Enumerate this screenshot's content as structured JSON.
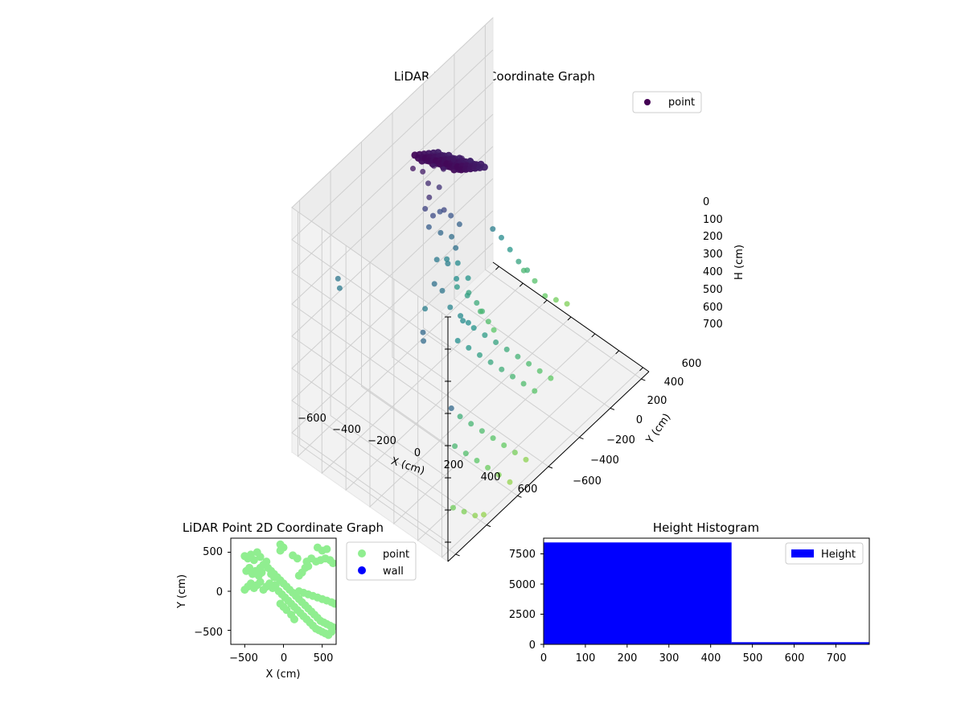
{
  "figure": {
    "panel3d": {
      "title": "LiDAR Point 3D Coordinate Graph",
      "xlabel": "X (cm)",
      "ylabel": "Y (cm)",
      "zlabel": "H (cm)",
      "xticks": [
        "−600",
        "−400",
        "−200",
        "0",
        "200",
        "400",
        "600"
      ],
      "yticks": [
        "−600",
        "−400",
        "−200",
        "0",
        "200",
        "400",
        "600"
      ],
      "zticks": [
        "0",
        "100",
        "200",
        "300",
        "400",
        "500",
        "600",
        "700"
      ],
      "legend": "point"
    },
    "panel2d": {
      "title": "LiDAR Point 2D Coordinate Graph",
      "xlabel": "X (cm)",
      "ylabel": "Y (cm)",
      "xticks": [
        "−500",
        "0",
        "500"
      ],
      "yticks": [
        "500",
        "0",
        "−500"
      ],
      "legend": [
        "point",
        "wall"
      ]
    },
    "histogram": {
      "title": "Height Histogram",
      "xticks": [
        "0",
        "100",
        "200",
        "300",
        "400",
        "500",
        "600",
        "700"
      ],
      "yticks": [
        "0",
        "2500",
        "5000",
        "7500"
      ],
      "legend": "Height"
    }
  },
  "chart_data": [
    {
      "type": "scatter",
      "title": "LiDAR Point 3D Coordinate Graph",
      "xlabel": "X (cm)",
      "ylabel": "Y (cm)",
      "zlabel": "H (cm)",
      "xlim": [
        -650,
        650
      ],
      "ylim": [
        -650,
        650
      ],
      "zlim": [
        0,
        760
      ],
      "z_inverted": true,
      "colormap": "viridis (by height)",
      "legend": "top-right",
      "series": [
        {
          "name": "point",
          "color": "#440154",
          "points": [
            [
              -350,
              100,
              50
            ],
            [
              -320,
              60,
              70
            ],
            [
              -280,
              20,
              60
            ],
            [
              -250,
              -20,
              80
            ],
            [
              -220,
              -60,
              60
            ],
            [
              -200,
              -100,
              70
            ],
            [
              -180,
              -140,
              90
            ],
            [
              -240,
              80,
              120
            ],
            [
              -300,
              40,
              110
            ],
            [
              -260,
              0,
              130
            ],
            [
              -300,
              60,
              180
            ],
            [
              -260,
              40,
              200
            ],
            [
              -220,
              0,
              190
            ],
            [
              -280,
              -20,
              220
            ],
            [
              -240,
              -60,
              240
            ],
            [
              -320,
              20,
              260
            ],
            [
              -220,
              -100,
              280
            ],
            [
              -300,
              -40,
              300
            ],
            [
              -260,
              -80,
              320
            ],
            [
              -200,
              -60,
              330
            ],
            [
              -280,
              0,
              360
            ],
            [
              -240,
              -40,
              380
            ],
            [
              -300,
              -80,
              400
            ],
            [
              -260,
              -120,
              420
            ],
            [
              -220,
              -80,
              440
            ],
            [
              -200,
              -140,
              460
            ],
            [
              -240,
              -100,
              480
            ],
            [
              -180,
              -120,
              500
            ],
            [
              -220,
              -160,
              520
            ],
            [
              -180,
              -180,
              550
            ],
            [
              -160,
              -200,
              580
            ],
            [
              -200,
              -220,
              600
            ],
            [
              -160,
              -240,
              630
            ],
            [
              -140,
              -260,
              660
            ],
            [
              -120,
              140,
              330
            ],
            [
              -80,
              120,
              350
            ],
            [
              120,
              400,
              300
            ],
            [
              150,
              420,
              310
            ],
            [
              -640,
              360,
              350
            ],
            [
              -600,
              380,
              360
            ],
            [
              -120,
              200,
              380
            ],
            [
              -40,
              100,
              400
            ],
            [
              20,
              80,
              420
            ],
            [
              60,
              60,
              440
            ],
            [
              -200,
              -300,
              380
            ],
            [
              -180,
              -340,
              420
            ],
            [
              -160,
              -380,
              470
            ],
            [
              -140,
              -420,
              520
            ],
            [
              -120,
              -460,
              560
            ],
            [
              -200,
              -500,
              600
            ],
            [
              -160,
              -540,
              640
            ],
            [
              -100,
              -560,
              680
            ],
            [
              -60,
              -600,
              700
            ],
            [
              -20,
              -640,
              720
            ],
            [
              40,
              80,
              430
            ],
            [
              80,
              40,
              460
            ],
            [
              120,
              0,
              490
            ],
            [
              160,
              -40,
              520
            ],
            [
              200,
              -80,
              550
            ],
            [
              240,
              -120,
              580
            ],
            [
              280,
              -160,
              610
            ],
            [
              320,
              -200,
              640
            ],
            [
              360,
              -240,
              670
            ],
            [
              100,
              160,
              440
            ],
            [
              140,
              120,
              470
            ],
            [
              180,
              80,
              500
            ],
            [
              220,
              40,
              530
            ],
            [
              260,
              0,
              560
            ],
            [
              300,
              -40,
              590
            ],
            [
              340,
              -80,
              620
            ],
            [
              380,
              -120,
              650
            ],
            [
              300,
              300,
              560
            ],
            [
              340,
              260,
              590
            ],
            [
              380,
              220,
              620
            ],
            [
              420,
              180,
              650
            ],
            [
              460,
              140,
              680
            ],
            [
              500,
              100,
              710
            ],
            [
              540,
              60,
              740
            ],
            [
              360,
              380,
              600
            ],
            [
              400,
              340,
              630
            ],
            [
              440,
              300,
              660
            ],
            [
              480,
              260,
              690
            ],
            [
              520,
              220,
              720
            ],
            [
              560,
              180,
              750
            ],
            [
              500,
              500,
              700
            ],
            [
              540,
              460,
              720
            ],
            [
              580,
              420,
              740
            ],
            [
              600,
              380,
              750
            ],
            [
              640,
              620,
              300
            ]
          ]
        }
      ]
    },
    {
      "type": "scatter",
      "title": "LiDAR Point 2D Coordinate Graph",
      "xlabel": "X (cm)",
      "ylabel": "Y (cm)",
      "xlim": [
        -680,
        680
      ],
      "ylim": [
        -680,
        680
      ],
      "legend": "outside-right",
      "series": [
        {
          "name": "point",
          "color": "#90ee90",
          "points": [
            [
              -500,
              450
            ],
            [
              -460,
              420
            ],
            [
              -420,
              470
            ],
            [
              -380,
              400
            ],
            [
              -340,
              500
            ],
            [
              -300,
              440
            ],
            [
              -480,
              260
            ],
            [
              -440,
              300
            ],
            [
              -400,
              220
            ],
            [
              -360,
              260
            ],
            [
              -320,
              200
            ],
            [
              -280,
              240
            ],
            [
              -500,
              20
            ],
            [
              -460,
              60
            ],
            [
              -420,
              100
            ],
            [
              -380,
              40
            ],
            [
              -340,
              80
            ],
            [
              -300,
              120
            ],
            [
              -260,
              20
            ],
            [
              -220,
              60
            ],
            [
              -180,
              100
            ],
            [
              -140,
              40
            ],
            [
              -100,
              80
            ],
            [
              -60,
              0
            ],
            [
              -20,
              -40
            ],
            [
              20,
              -80
            ],
            [
              60,
              -120
            ],
            [
              100,
              -160
            ],
            [
              140,
              -200
            ],
            [
              180,
              -240
            ],
            [
              220,
              -280
            ],
            [
              260,
              -320
            ],
            [
              300,
              -360
            ],
            [
              340,
              -400
            ],
            [
              380,
              -440
            ],
            [
              420,
              -480
            ],
            [
              460,
              -500
            ],
            [
              500,
              -520
            ],
            [
              540,
              -540
            ],
            [
              580,
              -560
            ],
            [
              620,
              -520
            ],
            [
              -200,
              300
            ],
            [
              -160,
              260
            ],
            [
              -120,
              220
            ],
            [
              -80,
              180
            ],
            [
              -40,
              140
            ],
            [
              0,
              100
            ],
            [
              40,
              60
            ],
            [
              80,
              20
            ],
            [
              120,
              -20
            ],
            [
              160,
              -60
            ],
            [
              200,
              -100
            ],
            [
              240,
              -140
            ],
            [
              280,
              -180
            ],
            [
              320,
              -220
            ],
            [
              360,
              -260
            ],
            [
              400,
              -300
            ],
            [
              440,
              -340
            ],
            [
              480,
              -380
            ],
            [
              520,
              -400
            ],
            [
              560,
              -420
            ],
            [
              600,
              -440
            ],
            [
              640,
              -460
            ],
            [
              200,
              0
            ],
            [
              260,
              -20
            ],
            [
              320,
              -40
            ],
            [
              380,
              -60
            ],
            [
              440,
              -80
            ],
            [
              500,
              -100
            ],
            [
              560,
              -120
            ],
            [
              620,
              -140
            ],
            [
              660,
              -160
            ],
            [
              -40,
              520
            ],
            [
              0,
              560
            ],
            [
              -40,
              600
            ],
            [
              120,
              460
            ],
            [
              180,
              420
            ],
            [
              300,
              380
            ],
            [
              360,
              420
            ],
            [
              420,
              380
            ],
            [
              480,
              400
            ],
            [
              540,
              420
            ],
            [
              600,
              400
            ],
            [
              640,
              360
            ],
            [
              440,
              560
            ],
            [
              500,
              520
            ],
            [
              560,
              540
            ],
            [
              -160,
              220
            ],
            [
              -120,
              180
            ],
            [
              200,
              200
            ],
            [
              240,
              240
            ],
            [
              280,
              300
            ],
            [
              320,
              320
            ],
            [
              100,
              -300
            ],
            [
              140,
              -360
            ],
            [
              40,
              -240
            ],
            [
              0,
              -200
            ],
            [
              -40,
              -160
            ],
            [
              -300,
              300
            ],
            [
              -260,
              340
            ],
            [
              -220,
              380
            ]
          ]
        },
        {
          "name": "wall",
          "color": "#0000ff",
          "points": []
        }
      ]
    },
    {
      "type": "bar",
      "title": "Height Histogram",
      "xlim": [
        0,
        780
      ],
      "ylim": [
        0,
        8800
      ],
      "legend": "top-right",
      "series": [
        {
          "name": "Height",
          "color": "#0000ff",
          "bins": [
            [
              0,
              450,
              8450
            ],
            [
              450,
              780,
              180
            ]
          ]
        }
      ]
    }
  ]
}
